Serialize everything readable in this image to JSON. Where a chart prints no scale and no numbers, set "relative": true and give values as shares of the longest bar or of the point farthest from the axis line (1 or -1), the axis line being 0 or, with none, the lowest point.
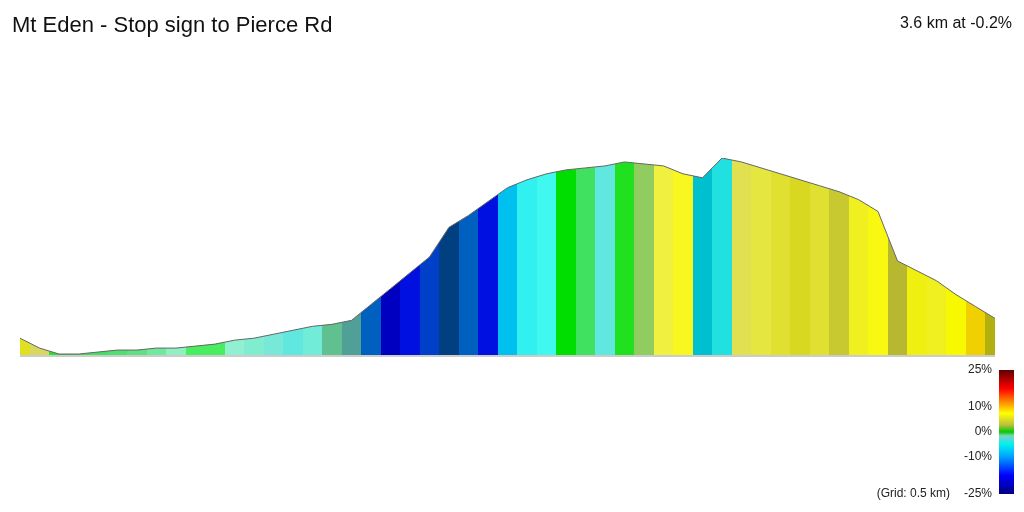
{
  "chart_data": {
    "type": "area",
    "title": "Mt Eden - Stop sign to Pierce Rd",
    "subtitle": "3.6 km at -0.2%",
    "annotations": [
      "(Grid: 0.5 km)",
      "25%",
      "10%",
      "0%",
      "-10%",
      "-25%"
    ],
    "relative": true,
    "color": "#666666",
    "categories": [
      null,
      null,
      null,
      null,
      null,
      null,
      null,
      null,
      null,
      null,
      null,
      null,
      null,
      null,
      null,
      null,
      null,
      null,
      null,
      null,
      null,
      null,
      null,
      null,
      null,
      null,
      null,
      null,
      null,
      null,
      null,
      null,
      null,
      null,
      null,
      null,
      null,
      null,
      null,
      null,
      null,
      null,
      null,
      null,
      null,
      null,
      null,
      null,
      null,
      null,
      null
    ],
    "values": [
      0.09,
      0.04,
      0.01,
      0.01,
      0.02,
      0.03,
      0.03,
      0.04,
      0.04,
      0.05,
      0.06,
      0.08,
      0.09,
      0.11,
      0.13,
      0.15,
      0.16,
      0.18,
      0.26,
      0.34,
      0.42,
      0.5,
      0.65,
      0.71,
      0.78,
      0.85,
      0.89,
      0.92,
      0.94,
      0.95,
      0.96,
      0.98,
      0.97,
      0.96,
      0.92,
      0.9,
      1,
      0.98,
      0.95,
      0.92,
      0.89,
      0.86,
      0.83,
      0.79,
      0.73,
      0.48,
      0.43,
      0.38,
      0.31,
      0.25,
      0.19
    ],
    "colors": [
      "#e0e020",
      "#d8d860",
      "#2ee02e",
      "#40e040",
      "#40e060",
      "#50e070",
      "#60e080",
      "#70e8a0",
      "#90f0c0",
      "#48ee60",
      "#48ee60",
      "#90f0d0",
      "#80ecd0",
      "#78e8d8",
      "#60e8e0",
      "#70ecd8",
      "#60c090",
      "#50a098",
      "#0060c0",
      "#0000c0",
      "#0010e0",
      "#0040c8",
      "#004080",
      "#0060c0",
      "#0010e0",
      "#00c0f0",
      "#30f0f0",
      "#40f8f0",
      "#00dd00",
      "#40e060",
      "#60e8e0",
      "#20e020",
      "#90cc60",
      "#f0f040",
      "#f8f820",
      "#00c0d0",
      "#20e0e0",
      "#e0e050",
      "#e6e640",
      "#e0e030",
      "#d8d820",
      "#e0e030",
      "#c8c830",
      "#f0f020",
      "#f8f810",
      "#b8b830",
      "#f0f010",
      "#f0f020",
      "#f8f800",
      "#f0d000",
      "#b0b010"
    ],
    "grid": false,
    "legend": false
  }
}
